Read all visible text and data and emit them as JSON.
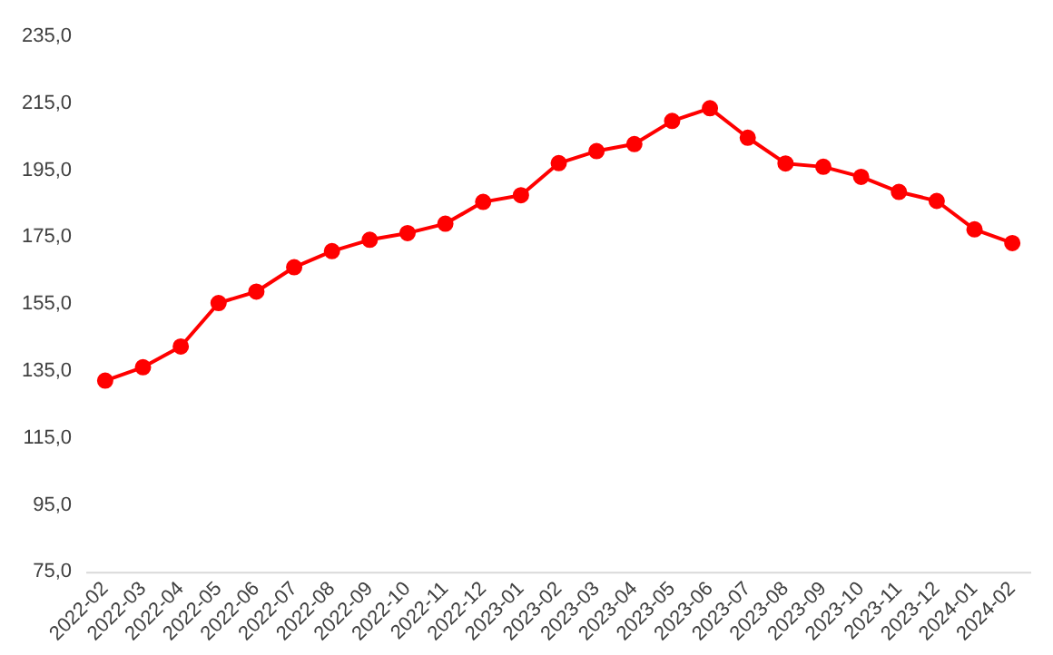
{
  "chart_data": {
    "type": "line",
    "categories": [
      "2022-02",
      "2022-03",
      "2022-04",
      "2022-05",
      "2022-06",
      "2022-07",
      "2022-08",
      "2022-09",
      "2022-10",
      "2022-11",
      "2022-12",
      "2023-01",
      "2023-02",
      "2023-03",
      "2023-04",
      "2023-05",
      "2023-06",
      "2023-07",
      "2023-08",
      "2023-09",
      "2023-10",
      "2023-11",
      "2023-12",
      "2024-01",
      "2024-02"
    ],
    "series": [
      {
        "color": "#ff0000",
        "values": [
          132.1,
          136.1,
          142.3,
          155.3,
          158.7,
          166.0,
          170.8,
          174.2,
          176.2,
          179.0,
          185.5,
          187.5,
          197.1,
          200.7,
          202.8,
          209.7,
          213.5,
          204.7,
          197.0,
          196.0,
          193.0,
          188.5,
          185.8,
          177.3,
          173.2
        ]
      }
    ],
    "ylim": [
      75,
      235
    ],
    "yticks": [
      {
        "value": 75,
        "label": "75,0"
      },
      {
        "value": 95,
        "label": "95,0"
      },
      {
        "value": 115,
        "label": "115,0"
      },
      {
        "value": 135,
        "label": "135,0"
      },
      {
        "value": 155,
        "label": "155,0"
      },
      {
        "value": 175,
        "label": "175,0"
      },
      {
        "value": 195,
        "label": "195,0"
      },
      {
        "value": 215,
        "label": "215,0"
      },
      {
        "value": 235,
        "label": "235,0"
      }
    ],
    "grid": false,
    "legend": false,
    "marker": "circle",
    "line_style": "solid"
  }
}
